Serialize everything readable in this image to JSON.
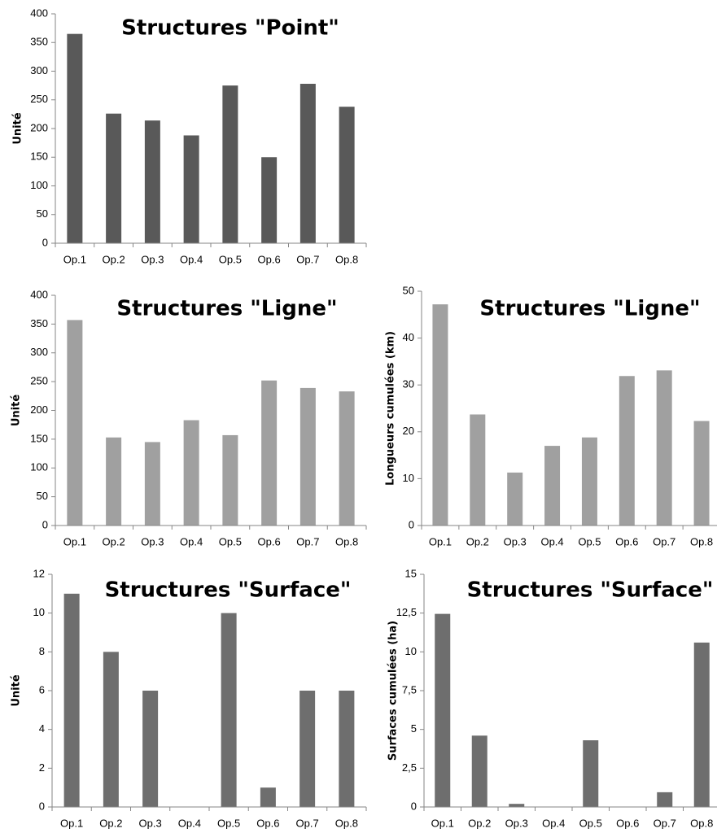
{
  "chart_data": [
    {
      "type": "bar",
      "title": "Structures \"Point\"",
      "ylabel": "Unité",
      "xlabel": "",
      "categories": [
        "Op.1",
        "Op.2",
        "Op.3",
        "Op.4",
        "Op.5",
        "Op.6",
        "Op.7",
        "Op.8"
      ],
      "values": [
        365,
        226,
        214,
        188,
        275,
        150,
        278,
        238
      ],
      "ylim": [
        0,
        400
      ],
      "yticks": [
        0,
        50,
        100,
        150,
        200,
        250,
        300,
        350,
        400
      ],
      "ytick_labels": [
        "0",
        "50",
        "100",
        "150",
        "200",
        "250",
        "300",
        "350",
        "400"
      ],
      "color": "#595959",
      "grid": false
    },
    {
      "type": "bar",
      "title": "Structures \"Ligne\"",
      "ylabel": "Unité",
      "xlabel": "",
      "categories": [
        "Op.1",
        "Op.2",
        "Op.3",
        "Op.4",
        "Op.5",
        "Op.6",
        "Op.7",
        "Op.8"
      ],
      "values": [
        357,
        153,
        145,
        183,
        157,
        252,
        239,
        233
      ],
      "ylim": [
        0,
        400
      ],
      "yticks": [
        0,
        50,
        100,
        150,
        200,
        250,
        300,
        350,
        400
      ],
      "ytick_labels": [
        "0",
        "50",
        "100",
        "150",
        "200",
        "250",
        "300",
        "350",
        "400"
      ],
      "color": "#a0a0a0",
      "grid": false
    },
    {
      "type": "bar",
      "title": "Structures \"Ligne\"",
      "ylabel": "Longueurs cumulées (km)",
      "xlabel": "",
      "categories": [
        "Op.1",
        "Op.2",
        "Op.3",
        "Op.4",
        "Op.5",
        "Op.6",
        "Op.7",
        "Op.8"
      ],
      "values": [
        47.2,
        23.7,
        11.3,
        17.0,
        18.8,
        31.9,
        33.1,
        22.3
      ],
      "ylim": [
        0,
        50
      ],
      "yticks": [
        0,
        10,
        20,
        30,
        40,
        50
      ],
      "ytick_labels": [
        "0",
        "10",
        "20",
        "30",
        "40",
        "50"
      ],
      "color": "#a0a0a0",
      "grid": false
    },
    {
      "type": "bar",
      "title": "Structures \"Surface\"",
      "ylabel": "Unité",
      "xlabel": "",
      "categories": [
        "Op.1",
        "Op.2",
        "Op.3",
        "Op.4",
        "Op.5",
        "Op.6",
        "Op.7",
        "Op.8"
      ],
      "values": [
        11,
        8,
        6,
        0,
        10,
        1,
        6,
        6
      ],
      "ylim": [
        0,
        12
      ],
      "yticks": [
        0,
        2,
        4,
        6,
        8,
        10,
        12
      ],
      "ytick_labels": [
        "0",
        "2",
        "4",
        "6",
        "8",
        "10",
        "12"
      ],
      "color": "#6e6e6e",
      "grid": false
    },
    {
      "type": "bar",
      "title": "Structures \"Surface\"",
      "ylabel": "Surfaces cumulées (ha)",
      "xlabel": "",
      "categories": [
        "Op.1",
        "Op.2",
        "Op.3",
        "Op.4",
        "Op.5",
        "Op.6",
        "Op.7",
        "Op.8"
      ],
      "values": [
        12.45,
        4.6,
        0.2,
        0,
        4.3,
        0,
        0.95,
        10.6
      ],
      "ylim": [
        0,
        15
      ],
      "yticks": [
        0,
        2.5,
        5,
        7.5,
        10,
        12.5,
        15
      ],
      "ytick_labels": [
        "0",
        "2,5",
        "5",
        "7,5",
        "10",
        "12,5",
        "15"
      ],
      "color": "#6e6e6e",
      "grid": false
    }
  ]
}
